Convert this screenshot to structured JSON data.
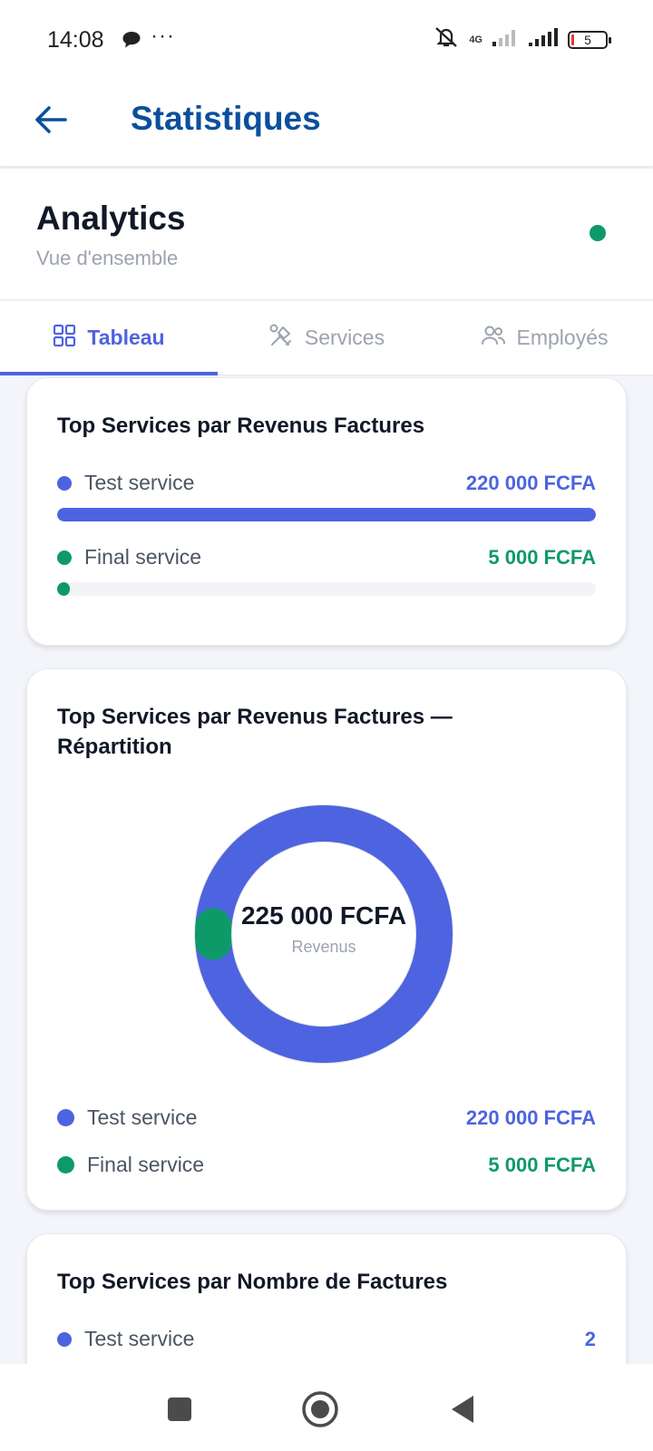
{
  "status_bar": {
    "time": "14:08",
    "network": "4G",
    "battery": "5"
  },
  "app_bar": {
    "title": "Statistiques",
    "back_icon": "arrow-left-icon"
  },
  "header": {
    "title": "Analytics",
    "subtitle": "Vue d'ensemble",
    "status_color": "#0e9a68"
  },
  "tabs": [
    {
      "label": "Tableau",
      "icon": "grid-icon",
      "active": true
    },
    {
      "label": "Services",
      "icon": "tools-icon",
      "active": false
    },
    {
      "label": "Employés",
      "icon": "users-icon",
      "active": false
    }
  ],
  "cards": {
    "revenue_bars": {
      "title": "Top Services par Revenus Factures",
      "items": [
        {
          "name": "Test service",
          "value": "220 000 FCFA",
          "fraction": 1.0,
          "color": "#4e63e0"
        },
        {
          "name": "Final service",
          "value": "5 000 FCFA",
          "fraction": 0.0227,
          "color": "#0e9a68"
        }
      ]
    },
    "revenue_donut": {
      "title": "Top Services par Revenus Factures — Répartition",
      "total": "225 000 FCFA",
      "total_label": "Revenus",
      "items": [
        {
          "name": "Test service",
          "value": "220 000 FCFA",
          "color": "#4e63e0"
        },
        {
          "name": "Final service",
          "value": "5 000 FCFA",
          "color": "#0e9a68"
        }
      ]
    },
    "invoice_count": {
      "title": "Top Services par Nombre de Factures",
      "items": [
        {
          "name": "Test service",
          "value": "2",
          "color": "#4e63e0"
        }
      ]
    }
  },
  "chart_data": {
    "type": "pie",
    "categories": [
      "Test service",
      "Final service"
    ],
    "values": [
      220000,
      5000
    ],
    "title": "Top Services par Revenus Factures — Répartition",
    "center_text": "225 000 FCFA",
    "center_label": "Revenus",
    "colors": [
      "#4e63e0",
      "#0e9a68"
    ]
  },
  "nav": {
    "icons": [
      "square-icon",
      "home-circle-icon",
      "back-triangle-icon"
    ]
  }
}
